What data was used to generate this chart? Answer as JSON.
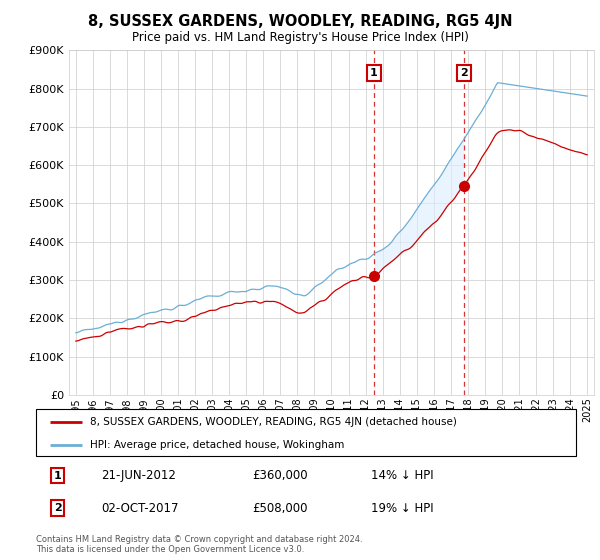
{
  "title": "8, SUSSEX GARDENS, WOODLEY, READING, RG5 4JN",
  "subtitle": "Price paid vs. HM Land Registry's House Price Index (HPI)",
  "yticks": [
    0,
    100000,
    200000,
    300000,
    400000,
    500000,
    600000,
    700000,
    800000,
    900000
  ],
  "ylim": [
    0,
    900000
  ],
  "x_start_year": 1995,
  "x_end_year": 2025,
  "marker1_date": 2012.47,
  "marker1_price": 360000,
  "marker1_text": "21-JUN-2012",
  "marker1_pct": "14% ↓ HPI",
  "marker2_date": 2017.75,
  "marker2_price": 508000,
  "marker2_text": "02-OCT-2017",
  "marker2_pct": "19% ↓ HPI",
  "hpi_color": "#6baed6",
  "price_color": "#cc0000",
  "shade_color": "#ddeeff",
  "legend_line1": "8, SUSSEX GARDENS, WOODLEY, READING, RG5 4JN (detached house)",
  "legend_line2": "HPI: Average price, detached house, Wokingham",
  "footer": "Contains HM Land Registry data © Crown copyright and database right 2024.\nThis data is licensed under the Open Government Licence v3.0.",
  "background_color": "#ffffff",
  "grid_color": "#cccccc"
}
